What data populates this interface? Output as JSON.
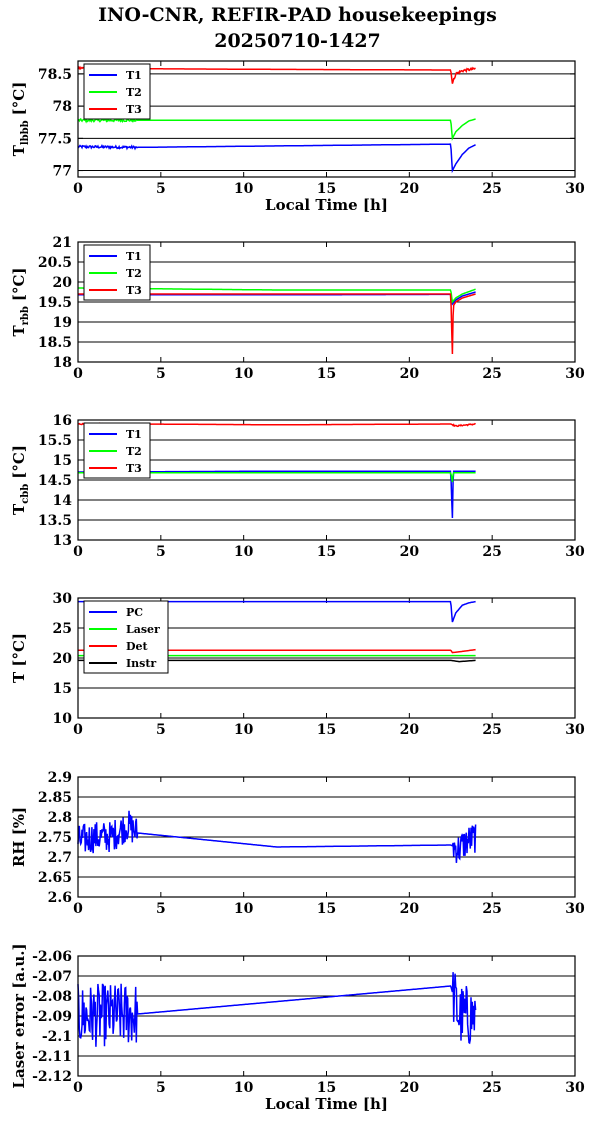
{
  "header": {
    "title_line1": "INO-CNR, REFIR-PAD housekeepings",
    "title_line2": "20250710-1427"
  },
  "chart_data": [
    {
      "type": "line",
      "ylabel": "T",
      "ylabel_sub": "lbbb",
      "ylabel_unit": "[°C]",
      "xlabel": "Local Time [h]",
      "xlim": [
        0,
        30
      ],
      "ylim": [
        76.9,
        78.7
      ],
      "yticks": [
        77,
        77.5,
        78,
        78.5
      ],
      "xticks": [
        0,
        5,
        10,
        15,
        20,
        25,
        30
      ],
      "grid": true,
      "legend": "top-left",
      "series": [
        {
          "name": "T1",
          "color": "#0000ff",
          "x": [
            0,
            3.6,
            22.5,
            22.6,
            22.8,
            23.2,
            23.6,
            24.0
          ],
          "y": [
            77.37,
            77.36,
            77.41,
            77.0,
            77.1,
            77.25,
            77.35,
            77.4
          ],
          "noise": 0.02,
          "noise_ranges": [
            [
              0,
              3.6
            ]
          ]
        },
        {
          "name": "T2",
          "color": "#00ff00",
          "x": [
            0,
            3.6,
            22.5,
            22.6,
            22.8,
            23.2,
            23.6,
            24.0
          ],
          "y": [
            77.78,
            77.78,
            77.78,
            77.5,
            77.6,
            77.7,
            77.77,
            77.8
          ],
          "noise": 0.02,
          "noise_ranges": [
            [
              0,
              3.6
            ]
          ]
        },
        {
          "name": "T3",
          "color": "#ff0000",
          "x": [
            0,
            3.6,
            12,
            22.5,
            22.6,
            22.8,
            23.2,
            24.0
          ],
          "y": [
            78.59,
            78.58,
            78.57,
            78.56,
            78.35,
            78.5,
            78.55,
            78.58
          ],
          "noise": 0.02,
          "noise_ranges": [
            [
              0,
              3.6
            ],
            [
              22.6,
              24.0
            ]
          ]
        }
      ]
    },
    {
      "type": "line",
      "ylabel": "T",
      "ylabel_sub": "rbb",
      "ylabel_unit": "[°C]",
      "xlabel": "",
      "xlim": [
        0,
        30
      ],
      "ylim": [
        18,
        21
      ],
      "yticks": [
        18,
        18.5,
        19,
        19.5,
        20,
        20.5,
        21
      ],
      "xticks": [
        0,
        5,
        10,
        15,
        20,
        25,
        30
      ],
      "grid": true,
      "legend": "top-left",
      "series": [
        {
          "name": "T1",
          "color": "#0000ff",
          "x": [
            0,
            12,
            22.5,
            22.6,
            22.8,
            23.2,
            24.0
          ],
          "y": [
            19.68,
            19.68,
            19.69,
            19.45,
            19.55,
            19.65,
            19.75
          ],
          "noise": 0,
          "noise_ranges": []
        },
        {
          "name": "T2",
          "color": "#00ff00",
          "x": [
            0,
            12,
            22.5,
            22.6,
            22.8,
            23.2,
            24.0
          ],
          "y": [
            19.85,
            19.8,
            19.8,
            19.5,
            19.6,
            19.7,
            19.82
          ],
          "noise": 0,
          "noise_ranges": []
        },
        {
          "name": "T3",
          "color": "#ff0000",
          "x": [
            0,
            12,
            22.5,
            22.6,
            22.65,
            22.8,
            23.2,
            24.0
          ],
          "y": [
            19.7,
            19.7,
            19.7,
            18.2,
            19.4,
            19.5,
            19.6,
            19.7
          ],
          "noise": 0,
          "noise_ranges": []
        }
      ]
    },
    {
      "type": "line",
      "ylabel": "T",
      "ylabel_sub": "cbb",
      "ylabel_unit": "[°C]",
      "xlabel": "",
      "xlim": [
        0,
        30
      ],
      "ylim": [
        13,
        16
      ],
      "yticks": [
        13,
        13.5,
        14,
        14.5,
        15,
        15.5,
        16
      ],
      "xticks": [
        0,
        5,
        10,
        15,
        20,
        25,
        30
      ],
      "grid": true,
      "legend": "top-left",
      "series": [
        {
          "name": "T1",
          "color": "#0000ff",
          "x": [
            0,
            12,
            22.5,
            22.6,
            22.65,
            24.0
          ],
          "y": [
            14.7,
            14.72,
            14.72,
            13.55,
            14.72,
            14.72
          ],
          "noise": 0,
          "noise_ranges": []
        },
        {
          "name": "T2",
          "color": "#00ff00",
          "x": [
            0,
            12,
            22.5,
            22.6,
            22.65,
            24.0
          ],
          "y": [
            14.68,
            14.68,
            14.68,
            14.45,
            14.68,
            14.68
          ],
          "noise": 0,
          "noise_ranges": []
        },
        {
          "name": "T3",
          "color": "#ff0000",
          "x": [
            0,
            3.6,
            12,
            22.5,
            22.8,
            24.0
          ],
          "y": [
            15.9,
            15.9,
            15.88,
            15.9,
            15.85,
            15.9
          ],
          "noise": 0.015,
          "noise_ranges": [
            [
              0,
              3.6
            ],
            [
              22.6,
              24.0
            ]
          ]
        }
      ]
    },
    {
      "type": "line",
      "ylabel": "T [°C]",
      "ylabel_sub": "",
      "ylabel_unit": "",
      "xlabel": "",
      "xlim": [
        0,
        30
      ],
      "ylim": [
        10,
        30
      ],
      "yticks": [
        10,
        15,
        20,
        25,
        30
      ],
      "xticks": [
        0,
        5,
        10,
        15,
        20,
        25,
        30
      ],
      "grid": true,
      "legend": "top-left",
      "series": [
        {
          "name": "PC",
          "color": "#0000ff",
          "x": [
            0,
            12,
            22.5,
            22.6,
            22.8,
            23.2,
            23.6,
            24.0
          ],
          "y": [
            29.4,
            29.4,
            29.4,
            26.0,
            27.5,
            28.8,
            29.2,
            29.4
          ],
          "noise": 0,
          "noise_ranges": []
        },
        {
          "name": "Laser",
          "color": "#00ff00",
          "x": [
            0,
            12,
            24.0
          ],
          "y": [
            20.4,
            20.4,
            20.4
          ],
          "noise": 0,
          "noise_ranges": []
        },
        {
          "name": "Det",
          "color": "#ff0000",
          "x": [
            0,
            12,
            22.5,
            22.6,
            23.2,
            24.0
          ],
          "y": [
            21.3,
            21.3,
            21.3,
            20.9,
            21.1,
            21.4
          ],
          "noise": 0,
          "noise_ranges": []
        },
        {
          "name": "Instr",
          "color": "#000000",
          "x": [
            0,
            12,
            22.5,
            23.0,
            24.0
          ],
          "y": [
            19.6,
            19.6,
            19.6,
            19.4,
            19.6
          ],
          "noise": 0,
          "noise_ranges": []
        }
      ]
    },
    {
      "type": "line",
      "ylabel": "RH [%]",
      "ylabel_sub": "",
      "ylabel_unit": "",
      "xlabel": "",
      "xlim": [
        0,
        30
      ],
      "ylim": [
        2.6,
        2.9
      ],
      "yticks": [
        2.6,
        2.65,
        2.7,
        2.75,
        2.8,
        2.85,
        2.9
      ],
      "xticks": [
        0,
        5,
        10,
        15,
        20,
        25,
        30
      ],
      "grid": true,
      "legend": "none",
      "series": [
        {
          "name": "",
          "color": "#0000ff",
          "x": [
            0,
            1,
            2,
            3,
            3.6,
            12,
            22.5,
            23.0,
            23.5,
            24.0
          ],
          "y": [
            2.74,
            2.75,
            2.75,
            2.78,
            2.76,
            2.725,
            2.73,
            2.72,
            2.74,
            2.75
          ],
          "noise": 0.04,
          "noise_ranges": [
            [
              0,
              3.6
            ],
            [
              22.6,
              24.0
            ]
          ]
        }
      ]
    },
    {
      "type": "line",
      "ylabel": "Laser error [a.u.]",
      "ylabel_sub": "",
      "ylabel_unit": "",
      "xlabel": "Local Time [h]",
      "xlim": [
        0,
        30
      ],
      "ylim": [
        -2.12,
        -2.06
      ],
      "yticks": [
        -2.12,
        -2.11,
        -2.1,
        -2.09,
        -2.08,
        -2.07,
        -2.06
      ],
      "xticks": [
        0,
        5,
        10,
        15,
        20,
        25,
        30
      ],
      "grid": true,
      "legend": "none",
      "series": [
        {
          "name": "",
          "color": "#0000ff",
          "x": [
            0,
            3.6,
            22.5,
            23.0,
            24.0
          ],
          "y": [
            -2.09,
            -2.089,
            -2.075,
            -2.09,
            -2.09
          ],
          "noise": 0.016,
          "noise_ranges": [
            [
              0,
              3.6
            ],
            [
              22.6,
              24.0
            ]
          ]
        }
      ]
    }
  ]
}
